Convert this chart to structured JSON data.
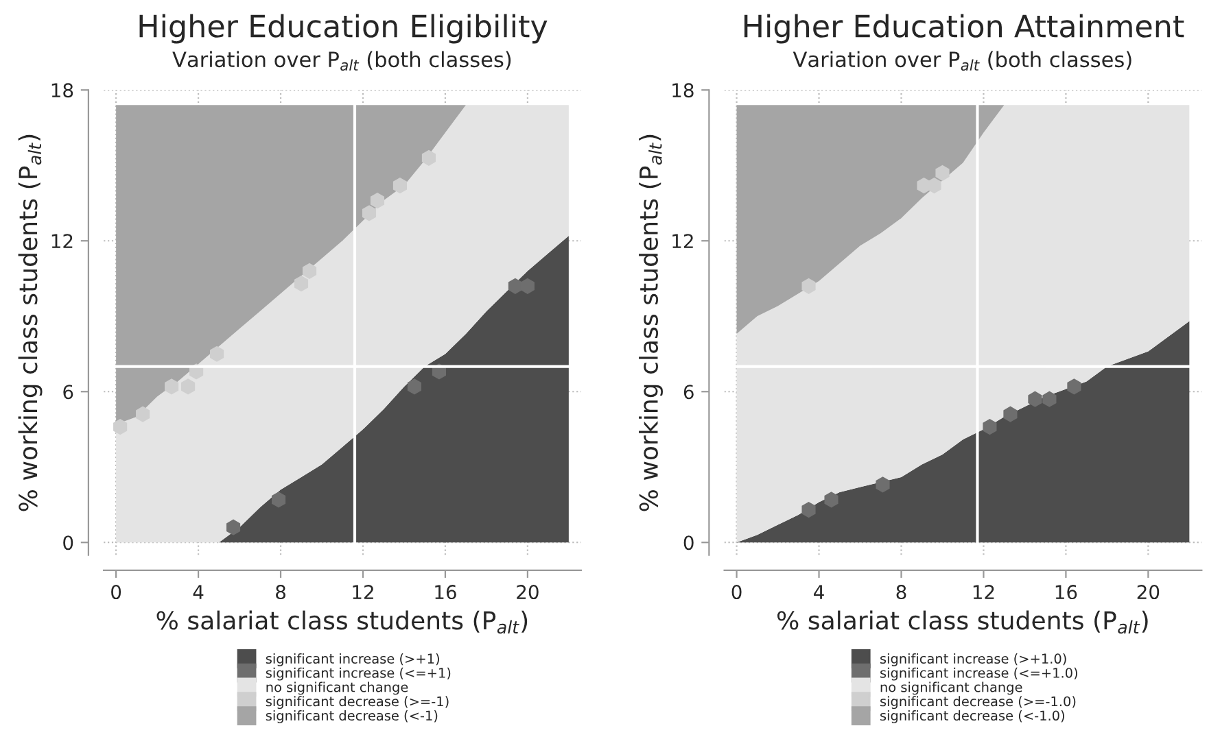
{
  "chart_data": [
    {
      "type": "area",
      "title": "Higher Education Eligibility",
      "subtitle": "Variation over P$_{alt}$ (both classes)",
      "xlabel": "% salariat class students (P$_{alt}$)",
      "ylabel": "% working class students (P$_{alt}$)",
      "stacked": true,
      "legend": "bottom",
      "grid": true,
      "x": [
        0,
        1,
        2,
        3,
        4,
        5,
        6,
        7,
        8,
        9,
        10,
        11,
        12,
        13,
        14,
        15,
        16,
        17,
        18,
        19,
        20,
        21,
        22
      ],
      "xlim": [
        -0.6,
        22.6
      ],
      "ylim": [
        -0.5,
        18
      ],
      "xticks": [
        0,
        4,
        8,
        12,
        16,
        20
      ],
      "yticks": [
        0,
        6,
        12,
        18
      ],
      "ref_lines": [
        {
          "axis": "x",
          "value": 11.6,
          "color": "#ffffff"
        },
        {
          "axis": "y",
          "value": 7,
          "color": "#ffffff"
        }
      ],
      "series": [
        {
          "name": "significant increase (>+1)",
          "color": "#4d4d4d",
          "values": [
            0,
            0,
            0,
            0,
            0,
            0,
            0.6,
            1.4,
            2.1,
            2.6,
            3.1,
            3.8,
            4.5,
            5.3,
            6.2,
            7.0,
            7.5,
            8.3,
            9.2,
            10.0,
            10.8,
            11.5,
            12.2
          ]
        },
        {
          "name": "significant increase (<=+1)",
          "type": "scatter",
          "color": "#6e6e6e",
          "x": [
            5.7,
            7.9,
            14.5,
            15.7,
            19.4,
            20.0
          ],
          "values": [
            0.6,
            1.7,
            6.2,
            6.8,
            10.2,
            10.2
          ]
        },
        {
          "name": "no significant change",
          "color": "#e4e4e4",
          "values": [
            4.7,
            5.0,
            5.8,
            6.4,
            7.1,
            7.8,
            7.9,
            7.8,
            7.8,
            8.0,
            8.2,
            8.2,
            8.3,
            8.3,
            8.0,
            8.2,
            8.8,
            9.1,
            8.2,
            7.4,
            6.6,
            5.9,
            5.2
          ]
        },
        {
          "name": "significant decrease (>=-1)",
          "type": "scatter",
          "color": "#cfcfcf",
          "x": [
            0.2,
            1.3,
            2.7,
            3.5,
            3.9,
            4.9,
            9.0,
            9.4,
            12.3,
            12.7,
            13.8,
            15.2
          ],
          "values": [
            4.6,
            5.1,
            6.2,
            6.2,
            6.8,
            7.5,
            10.3,
            10.8,
            13.1,
            13.6,
            14.2,
            15.3
          ]
        },
        {
          "name": "significant decrease (<-1)",
          "color": "#a5a5a5",
          "values": [
            12.7,
            12.4,
            11.6,
            11.0,
            10.3,
            9.6,
            8.9,
            8.2,
            7.5,
            6.8,
            6.1,
            5.4,
            4.6,
            3.8,
            3.2,
            2.2,
            1.1,
            0,
            0,
            0,
            0,
            0,
            0
          ]
        }
      ]
    },
    {
      "type": "area",
      "title": "Higher Education Attainment",
      "subtitle": "Variation over P$_{alt}$ (both classes)",
      "xlabel": "% salariat class students (P$_{alt}$)",
      "ylabel": "% working class students (P$_{alt}$)",
      "stacked": true,
      "legend": "bottom",
      "grid": true,
      "x": [
        0,
        1,
        2,
        3,
        4,
        5,
        6,
        7,
        8,
        9,
        10,
        11,
        12,
        13,
        14,
        15,
        16,
        17,
        18,
        19,
        20,
        21,
        22
      ],
      "xlim": [
        -0.6,
        22.6
      ],
      "ylim": [
        -0.5,
        18
      ],
      "xticks": [
        0,
        4,
        8,
        12,
        16,
        20
      ],
      "yticks": [
        0,
        6,
        12,
        18
      ],
      "ref_lines": [
        {
          "axis": "x",
          "value": 11.7,
          "color": "#ffffff"
        },
        {
          "axis": "y",
          "value": 7,
          "color": "#ffffff"
        }
      ],
      "series": [
        {
          "name": "significant increase (>+1.0)",
          "color": "#4d4d4d",
          "values": [
            0,
            0.3,
            0.7,
            1.1,
            1.6,
            2.0,
            2.2,
            2.4,
            2.6,
            3.1,
            3.5,
            4.1,
            4.5,
            5.0,
            5.4,
            5.8,
            6.1,
            6.4,
            7.0,
            7.3,
            7.6,
            8.2,
            8.8
          ]
        },
        {
          "name": "significant increase (<=+1.0)",
          "type": "scatter",
          "color": "#6e6e6e",
          "x": [
            3.5,
            4.6,
            7.1,
            12.3,
            13.3,
            14.5,
            15.2,
            16.4
          ],
          "values": [
            1.3,
            1.7,
            2.3,
            4.6,
            5.1,
            5.7,
            5.7,
            6.2
          ]
        },
        {
          "name": "no significant change",
          "color": "#e4e4e4",
          "values": [
            8.3,
            8.7,
            8.7,
            8.8,
            8.8,
            9.1,
            9.6,
            9.9,
            10.3,
            10.6,
            10.9,
            11.0,
            11.8,
            12.4,
            12.0,
            11.6,
            11.3,
            11.0,
            10.4,
            10.1,
            9.8,
            9.2,
            8.6
          ]
        },
        {
          "name": "significant decrease (>=-1.0)",
          "type": "scatter",
          "color": "#cfcfcf",
          "x": [
            3.5,
            9.1,
            9.6,
            10.0
          ],
          "values": [
            10.2,
            14.2,
            14.2,
            14.7
          ]
        },
        {
          "name": "significant decrease (<-1.0)",
          "color": "#a5a5a5",
          "values": [
            9.1,
            8.4,
            8.0,
            7.5,
            7.0,
            6.3,
            5.6,
            5.1,
            4.5,
            3.7,
            3.0,
            2.3,
            1.1,
            0,
            0,
            0,
            0,
            0,
            0,
            0,
            0,
            0,
            0
          ]
        }
      ]
    }
  ]
}
